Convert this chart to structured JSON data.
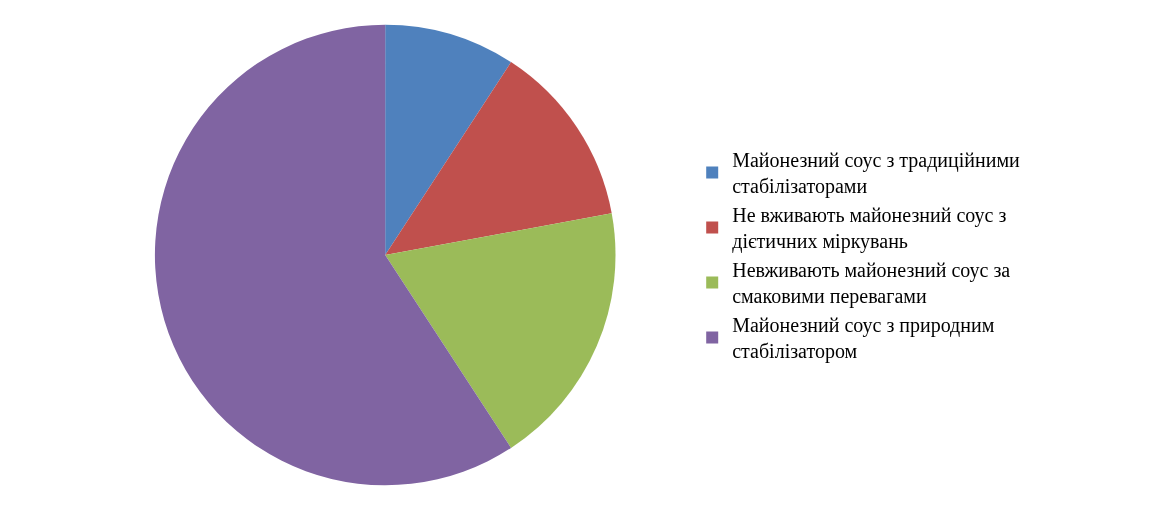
{
  "chart_data": {
    "type": "pie",
    "categories": [
      "Майонезний соус з традиційними стабілізаторами",
      "Не вживають майонезний соус з дієтичних міркувань",
      "Невживають майонезний соус за смаковими перевагами",
      "Майонезний соус з природним стабілізатором"
    ],
    "values": [
      9.2,
      12.9,
      18.7,
      59.2
    ],
    "colors": [
      "#4f81bd",
      "#c0504d",
      "#9bbb59",
      "#8064a2"
    ],
    "legend": "right"
  }
}
